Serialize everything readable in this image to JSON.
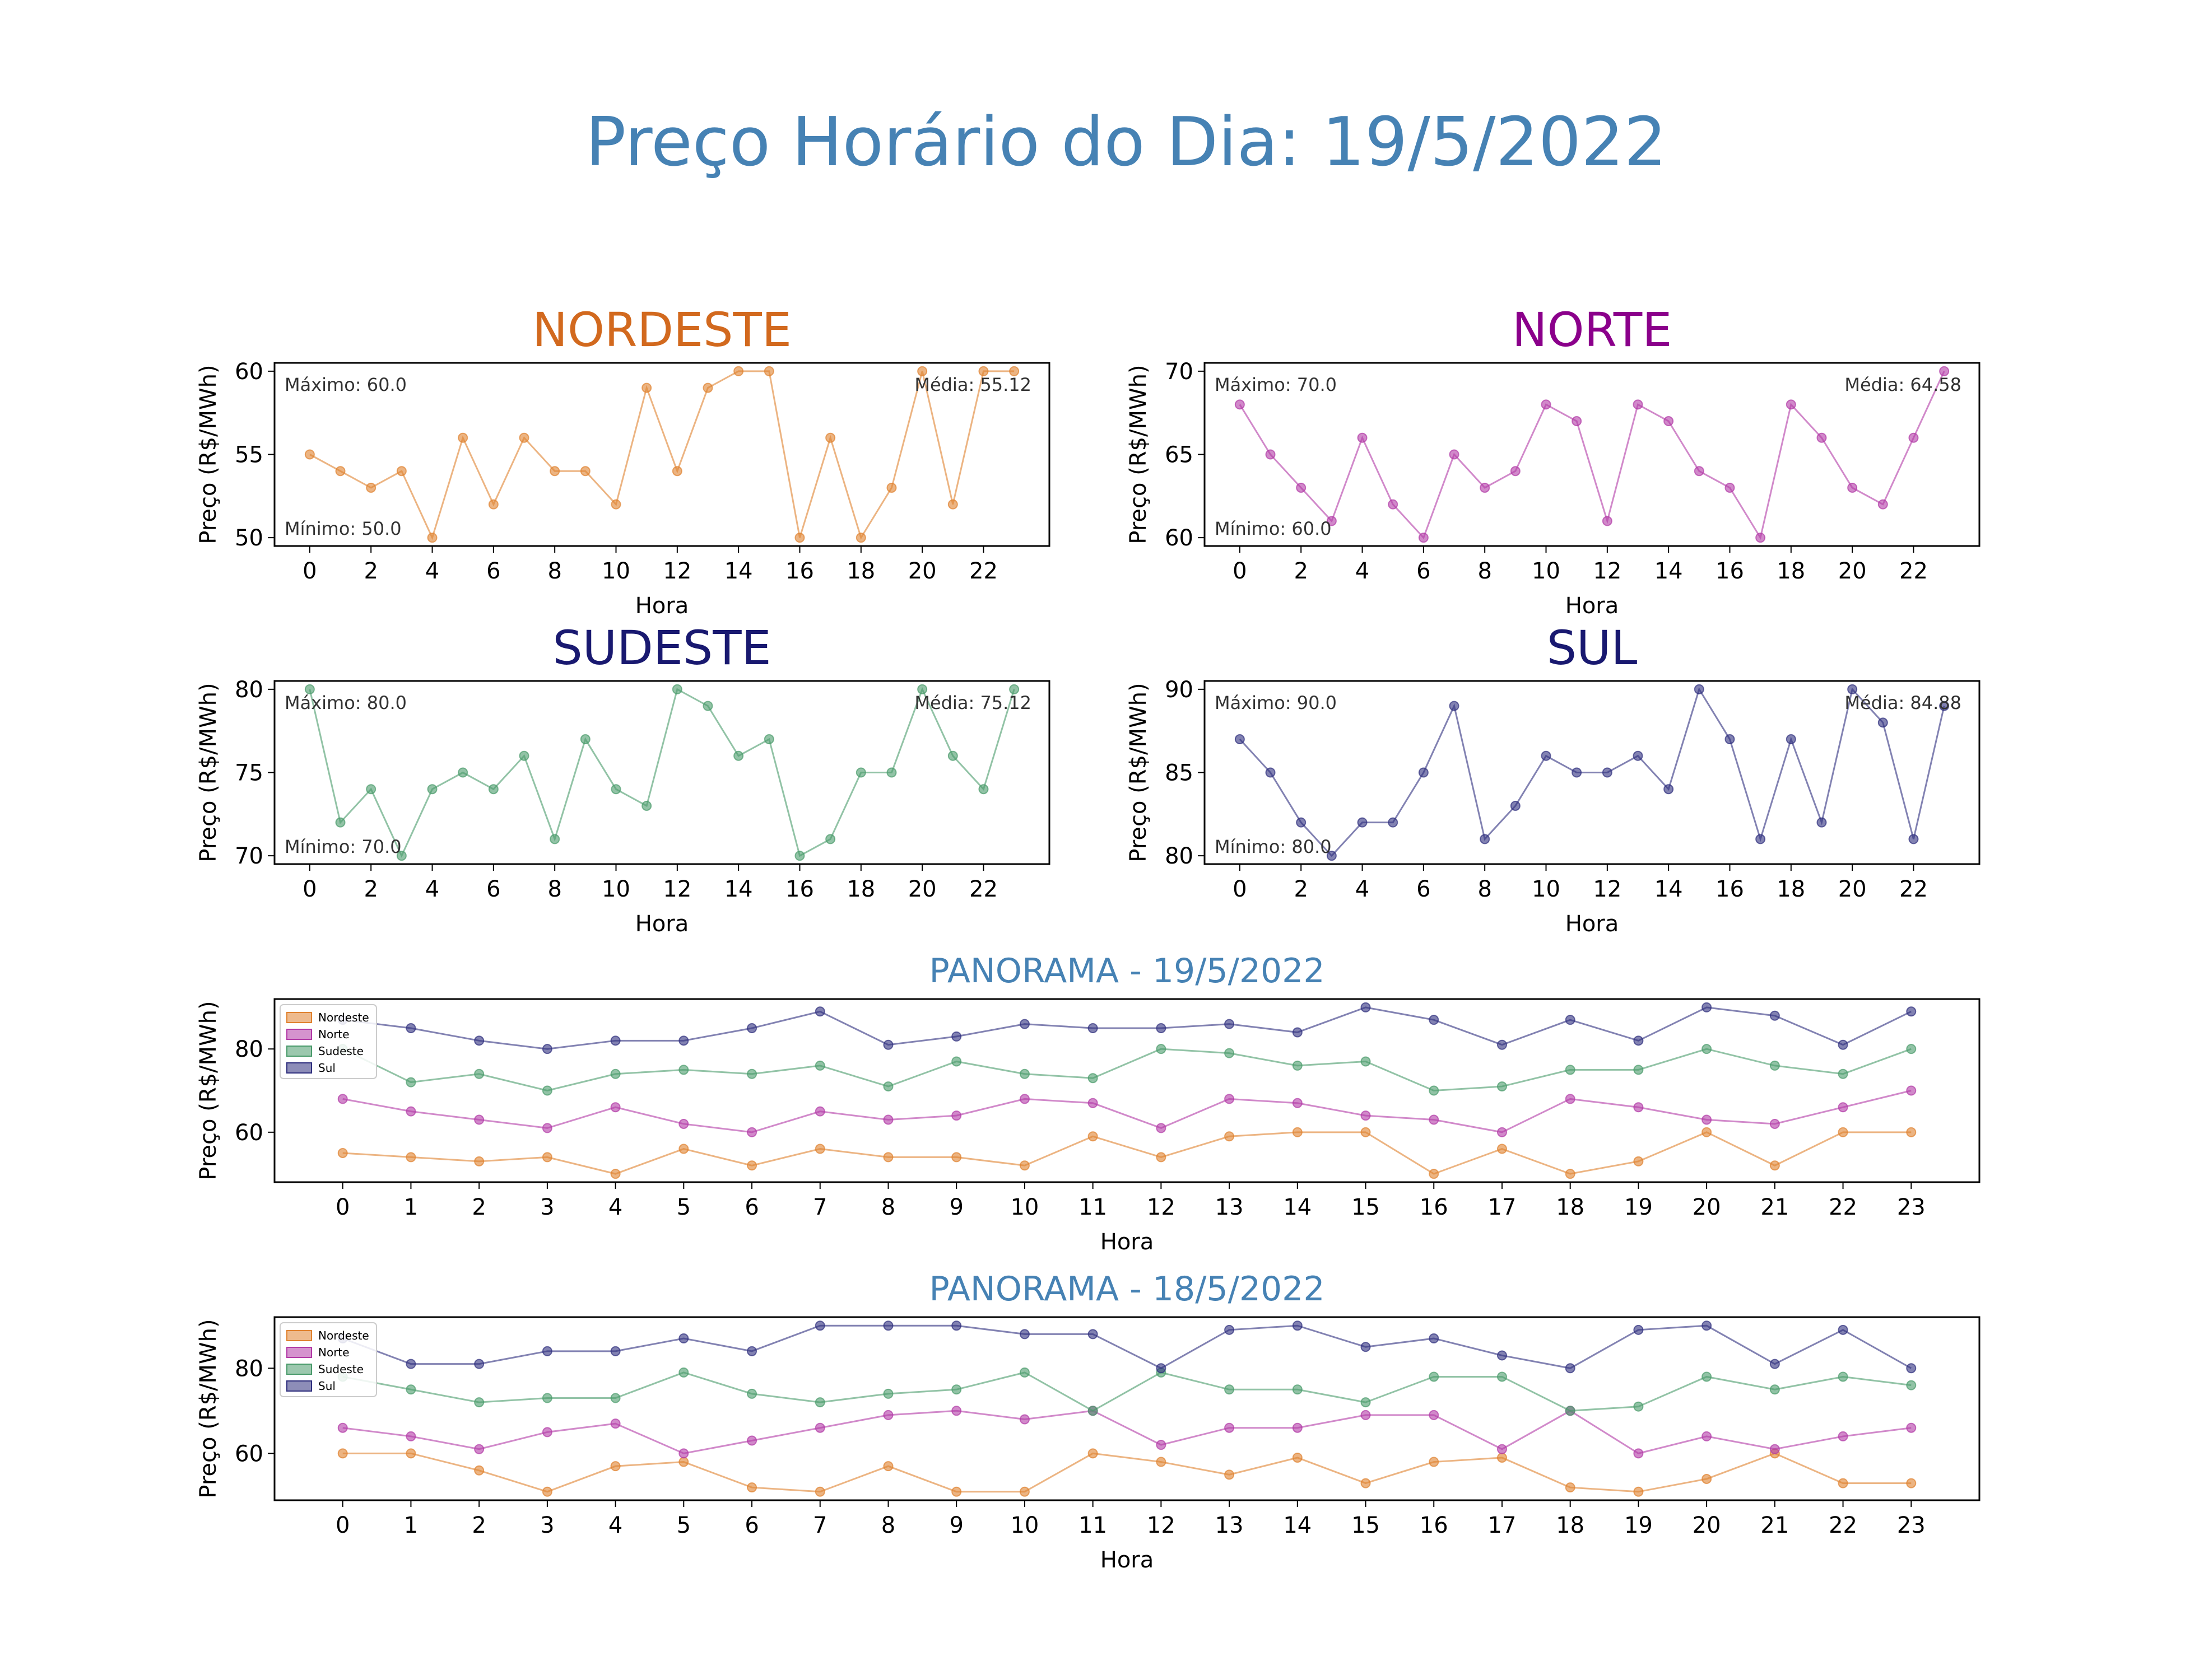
{
  "title": "Preço Horário do Dia: 19/5/2022",
  "colors": {
    "title": "#4682b4",
    "nordeste": "#e0822f",
    "norte": "#b23aa6",
    "sudeste": "#4a9b6b",
    "sul": "#2f2f7e",
    "title_nordeste": "#d2691e",
    "title_norte": "#8b008b",
    "title_sudeste": "#191970",
    "title_sul": "#191970"
  },
  "chart_data": [
    {
      "id": "nordeste",
      "type": "line",
      "title": "NORDESTE",
      "xlabel": "Hora",
      "ylabel": "Preço (R$/MWh)",
      "x": [
        0,
        1,
        2,
        3,
        4,
        5,
        6,
        7,
        8,
        9,
        10,
        11,
        12,
        13,
        14,
        15,
        16,
        17,
        18,
        19,
        20,
        21,
        22,
        23
      ],
      "xticks": [
        0,
        2,
        4,
        6,
        8,
        10,
        12,
        14,
        16,
        18,
        20,
        22
      ],
      "yticks": [
        50,
        55,
        60
      ],
      "ylim": [
        49.5,
        60.5
      ],
      "values": [
        55,
        54,
        53,
        54,
        50,
        56,
        52,
        56,
        54,
        54,
        52,
        59,
        54,
        59,
        60,
        60,
        50,
        56,
        50,
        53,
        60,
        52,
        60,
        60
      ],
      "annotations": {
        "max": "Máximo: 60.0",
        "min": "Mínimo: 50.0",
        "mean": "Média: 55.12"
      }
    },
    {
      "id": "norte",
      "type": "line",
      "title": "NORTE",
      "xlabel": "Hora",
      "ylabel": "Preço (R$/MWh)",
      "x": [
        0,
        1,
        2,
        3,
        4,
        5,
        6,
        7,
        8,
        9,
        10,
        11,
        12,
        13,
        14,
        15,
        16,
        17,
        18,
        19,
        20,
        21,
        22,
        23
      ],
      "xticks": [
        0,
        2,
        4,
        6,
        8,
        10,
        12,
        14,
        16,
        18,
        20,
        22
      ],
      "yticks": [
        60,
        65,
        70
      ],
      "ylim": [
        59.5,
        70.5
      ],
      "values": [
        68,
        65,
        63,
        61,
        66,
        62,
        60,
        65,
        63,
        64,
        68,
        67,
        61,
        68,
        67,
        64,
        63,
        60,
        68,
        66,
        63,
        62,
        66,
        70
      ],
      "annotations": {
        "max": "Máximo: 70.0",
        "min": "Mínimo: 60.0",
        "mean": "Média: 64.58"
      }
    },
    {
      "id": "sudeste",
      "type": "line",
      "title": "SUDESTE",
      "xlabel": "Hora",
      "ylabel": "Preço (R$/MWh)",
      "x": [
        0,
        1,
        2,
        3,
        4,
        5,
        6,
        7,
        8,
        9,
        10,
        11,
        12,
        13,
        14,
        15,
        16,
        17,
        18,
        19,
        20,
        21,
        22,
        23
      ],
      "xticks": [
        0,
        2,
        4,
        6,
        8,
        10,
        12,
        14,
        16,
        18,
        20,
        22
      ],
      "yticks": [
        70,
        75,
        80
      ],
      "ylim": [
        69.5,
        80.5
      ],
      "values": [
        80,
        72,
        74,
        70,
        74,
        75,
        74,
        76,
        71,
        77,
        74,
        73,
        80,
        79,
        76,
        77,
        70,
        71,
        75,
        75,
        80,
        76,
        74,
        80
      ],
      "annotations": {
        "max": "Máximo: 80.0",
        "min": "Mínimo: 70.0",
        "mean": "Média: 75.12"
      }
    },
    {
      "id": "sul",
      "type": "line",
      "title": "SUL",
      "xlabel": "Hora",
      "ylabel": "Preço (R$/MWh)",
      "x": [
        0,
        1,
        2,
        3,
        4,
        5,
        6,
        7,
        8,
        9,
        10,
        11,
        12,
        13,
        14,
        15,
        16,
        17,
        18,
        19,
        20,
        21,
        22,
        23
      ],
      "xticks": [
        0,
        2,
        4,
        6,
        8,
        10,
        12,
        14,
        16,
        18,
        20,
        22
      ],
      "yticks": [
        80,
        85,
        90
      ],
      "ylim": [
        79.5,
        90.5
      ],
      "values": [
        87,
        85,
        82,
        80,
        82,
        82,
        85,
        89,
        81,
        83,
        86,
        85,
        85,
        86,
        84,
        90,
        87,
        81,
        87,
        82,
        90,
        88,
        81,
        89
      ],
      "annotations": {
        "max": "Máximo: 90.0",
        "min": "Mínimo: 80.0",
        "mean": "Média: 84.88"
      }
    },
    {
      "id": "panorama_today",
      "type": "line",
      "title": "PANORAMA - 19/5/2022",
      "xlabel": "Hora",
      "ylabel": "Preço (R$/MWh)",
      "x": [
        0,
        1,
        2,
        3,
        4,
        5,
        6,
        7,
        8,
        9,
        10,
        11,
        12,
        13,
        14,
        15,
        16,
        17,
        18,
        19,
        20,
        21,
        22,
        23
      ],
      "xticks": [
        0,
        1,
        2,
        3,
        4,
        5,
        6,
        7,
        8,
        9,
        10,
        11,
        12,
        13,
        14,
        15,
        16,
        17,
        18,
        19,
        20,
        21,
        22,
        23
      ],
      "yticks": [
        60,
        80
      ],
      "ylim": [
        48,
        92
      ],
      "xlim": [
        -1.0,
        24.0
      ],
      "legend": "top-left",
      "series": [
        {
          "name": "Nordeste",
          "key": "nordeste",
          "values": [
            55,
            54,
            53,
            54,
            50,
            56,
            52,
            56,
            54,
            54,
            52,
            59,
            54,
            59,
            60,
            60,
            50,
            56,
            50,
            53,
            60,
            52,
            60,
            60
          ]
        },
        {
          "name": "Norte",
          "key": "norte",
          "values": [
            68,
            65,
            63,
            61,
            66,
            62,
            60,
            65,
            63,
            64,
            68,
            67,
            61,
            68,
            67,
            64,
            63,
            60,
            68,
            66,
            63,
            62,
            66,
            70
          ]
        },
        {
          "name": "Sudeste",
          "key": "sudeste",
          "values": [
            80,
            72,
            74,
            70,
            74,
            75,
            74,
            76,
            71,
            77,
            74,
            73,
            80,
            79,
            76,
            77,
            70,
            71,
            75,
            75,
            80,
            76,
            74,
            80
          ]
        },
        {
          "name": "Sul",
          "key": "sul",
          "values": [
            87,
            85,
            82,
            80,
            82,
            82,
            85,
            89,
            81,
            83,
            86,
            85,
            85,
            86,
            84,
            90,
            87,
            81,
            87,
            82,
            90,
            88,
            81,
            89
          ]
        }
      ]
    },
    {
      "id": "panorama_yesterday",
      "type": "line",
      "title": "PANORAMA - 18/5/2022",
      "xlabel": "Hora",
      "ylabel": "Preço (R$/MWh)",
      "x": [
        0,
        1,
        2,
        3,
        4,
        5,
        6,
        7,
        8,
        9,
        10,
        11,
        12,
        13,
        14,
        15,
        16,
        17,
        18,
        19,
        20,
        21,
        22,
        23
      ],
      "xticks": [
        0,
        1,
        2,
        3,
        4,
        5,
        6,
        7,
        8,
        9,
        10,
        11,
        12,
        13,
        14,
        15,
        16,
        17,
        18,
        19,
        20,
        21,
        22,
        23
      ],
      "yticks": [
        60,
        80
      ],
      "ylim": [
        49,
        92
      ],
      "xlim": [
        -1.0,
        24.0
      ],
      "legend": "top-left",
      "series": [
        {
          "name": "Nordeste",
          "key": "nordeste",
          "values": [
            60,
            60,
            56,
            51,
            57,
            58,
            52,
            51,
            57,
            51,
            51,
            60,
            58,
            55,
            59,
            53,
            58,
            59,
            52,
            51,
            54,
            60,
            53,
            53
          ]
        },
        {
          "name": "Norte",
          "key": "norte",
          "values": [
            66,
            64,
            61,
            65,
            67,
            60,
            63,
            66,
            69,
            70,
            68,
            70,
            62,
            66,
            66,
            69,
            69,
            61,
            70,
            60,
            64,
            61,
            64,
            66
          ]
        },
        {
          "name": "Sudeste",
          "key": "sudeste",
          "values": [
            78,
            75,
            72,
            73,
            73,
            79,
            74,
            72,
            74,
            75,
            79,
            70,
            79,
            75,
            75,
            72,
            78,
            78,
            70,
            71,
            78,
            75,
            78,
            76
          ]
        },
        {
          "name": "Sul",
          "key": "sul",
          "values": [
            87,
            81,
            81,
            84,
            84,
            87,
            84,
            90,
            90,
            90,
            88,
            88,
            80,
            89,
            90,
            85,
            87,
            83,
            80,
            89,
            90,
            81,
            89,
            80
          ]
        }
      ]
    }
  ]
}
